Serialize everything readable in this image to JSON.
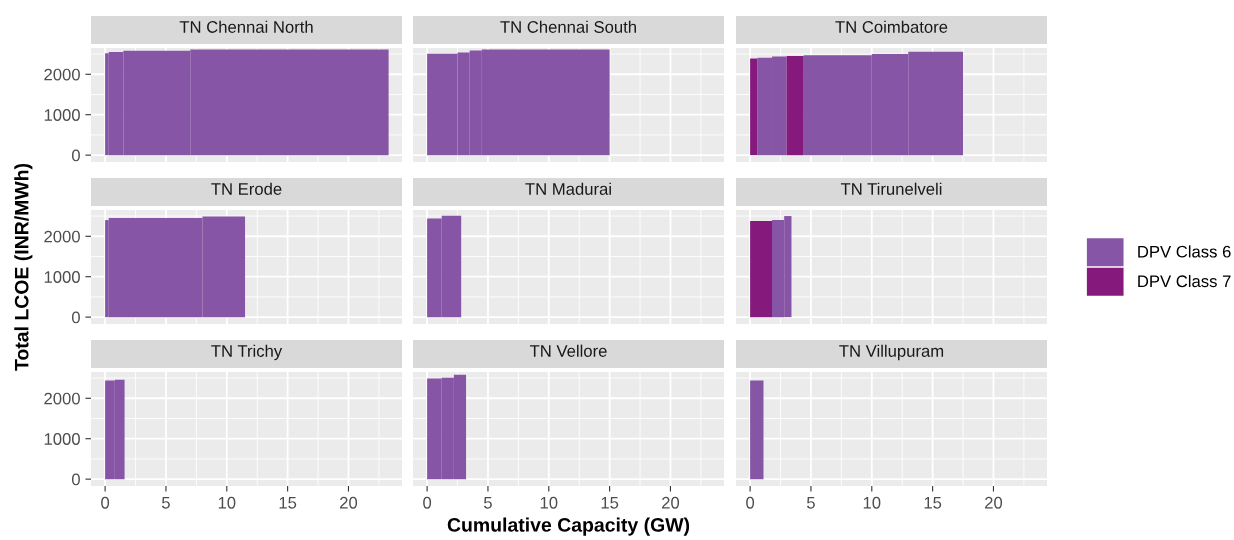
{
  "chart_data": [
    {
      "type": "histogram",
      "title": "TN Chennai North",
      "xlim": [
        -1.16,
        24.4
      ],
      "ylim": [
        -170,
        2650
      ],
      "xticks": [
        0,
        5,
        10,
        15,
        20
      ],
      "yticks": [
        0,
        1000,
        2000
      ],
      "grid": true,
      "tick_labels": "y",
      "bins": [
        0,
        0.3,
        1.5,
        7,
        23.3
      ],
      "series": [
        {
          "color": "#8755a6",
          "values": [
            2520,
            2550,
            2580,
            2610
          ]
        }
      ]
    },
    {
      "type": "histogram",
      "title": "TN Chennai South",
      "xlim": [
        -1.16,
        24.4
      ],
      "ylim": [
        -170,
        2650
      ],
      "xticks": [
        0,
        5,
        10,
        15,
        20
      ],
      "yticks": [
        0,
        1000,
        2000
      ],
      "grid": true,
      "tick_labels": false,
      "bins": [
        0,
        2.5,
        3.5,
        4.5,
        15
      ],
      "series": [
        {
          "color": "#8755a6",
          "values": [
            2510,
            2540,
            2590,
            2610
          ]
        }
      ]
    },
    {
      "type": "histogram",
      "title": "TN Coimbatore",
      "xlim": [
        -1.16,
        24.4
      ],
      "ylim": [
        -170,
        2650
      ],
      "xticks": [
        0,
        5,
        10,
        15,
        20
      ],
      "yticks": [
        0,
        1000,
        2000
      ],
      "grid": true,
      "tick_labels": false,
      "bins": [
        0,
        0.6,
        1.8,
        3.0,
        4.4,
        10,
        13,
        17.5
      ],
      "series": [
        {
          "color": "#8755a6",
          "values": [
            null,
            2410,
            2440,
            null,
            2470,
            2500,
            2560
          ]
        },
        {
          "color": "#85197c",
          "values": [
            2390,
            null,
            null,
            2450,
            null,
            null,
            null
          ]
        }
      ]
    },
    {
      "type": "histogram",
      "title": "TN Erode",
      "xlim": [
        -1.16,
        24.4
      ],
      "ylim": [
        -170,
        2650
      ],
      "xticks": [
        0,
        5,
        10,
        15,
        20
      ],
      "yticks": [
        0,
        1000,
        2000
      ],
      "grid": true,
      "tick_labels": "y",
      "ylabel": "Total LCOE (INR/MWh)",
      "bins": [
        0,
        0.3,
        8,
        11.5
      ],
      "series": [
        {
          "color": "#8755a6",
          "values": [
            2400,
            2450,
            2490
          ]
        }
      ]
    },
    {
      "type": "histogram",
      "title": "TN Madurai",
      "xlim": [
        -1.16,
        24.4
      ],
      "ylim": [
        -170,
        2650
      ],
      "xticks": [
        0,
        5,
        10,
        15,
        20
      ],
      "yticks": [
        0,
        1000,
        2000
      ],
      "grid": true,
      "tick_labels": false,
      "bins": [
        0,
        1.2,
        2.8
      ],
      "series": [
        {
          "color": "#8755a6",
          "values": [
            2440,
            2510
          ]
        }
      ]
    },
    {
      "type": "histogram",
      "title": "TN Tirunelveli",
      "xlim": [
        -1.16,
        24.4
      ],
      "ylim": [
        -170,
        2650
      ],
      "xticks": [
        0,
        5,
        10,
        15,
        20
      ],
      "yticks": [
        0,
        1000,
        2000
      ],
      "grid": true,
      "tick_labels": false,
      "legend": "right",
      "bins": [
        0,
        1.8,
        2.8,
        3.4
      ],
      "series": [
        {
          "name": "DPV Class 6",
          "color": "#8755a6",
          "values": [
            null,
            2400,
            2500
          ]
        },
        {
          "name": "DPV Class 7",
          "color": "#85197c",
          "values": [
            2380,
            null,
            null
          ]
        }
      ]
    },
    {
      "type": "histogram",
      "title": "TN Trichy",
      "xlim": [
        -1.16,
        24.4
      ],
      "ylim": [
        -170,
        2650
      ],
      "xticks": [
        0,
        5,
        10,
        15,
        20
      ],
      "yticks": [
        0,
        1000,
        2000
      ],
      "grid": true,
      "bins": [
        0,
        0.8,
        1.6
      ],
      "series": [
        {
          "color": "#8755a6",
          "values": [
            2440,
            2460
          ]
        }
      ]
    },
    {
      "type": "histogram",
      "title": "TN Vellore",
      "xlim": [
        -1.16,
        24.4
      ],
      "ylim": [
        -170,
        2650
      ],
      "xticks": [
        0,
        5,
        10,
        15,
        20
      ],
      "yticks": [
        0,
        1000,
        2000
      ],
      "grid": true,
      "tick_labels": "x",
      "xlabel": "Cumulative Capacity (GW)",
      "bins": [
        0,
        1.2,
        2.2,
        3.2
      ],
      "series": [
        {
          "color": "#8755a6",
          "values": [
            2490,
            2510,
            2580
          ]
        }
      ]
    },
    {
      "type": "histogram",
      "title": "TN Villupuram",
      "xlim": [
        -1.16,
        24.4
      ],
      "ylim": [
        -170,
        2650
      ],
      "xticks": [
        0,
        5,
        10,
        15,
        20
      ],
      "yticks": [
        0,
        1000,
        2000
      ],
      "grid": true,
      "tick_labels": "x",
      "bins": [
        0,
        1.1
      ],
      "series": [
        {
          "color": "#8755a6",
          "values": [
            2440
          ]
        }
      ]
    }
  ]
}
